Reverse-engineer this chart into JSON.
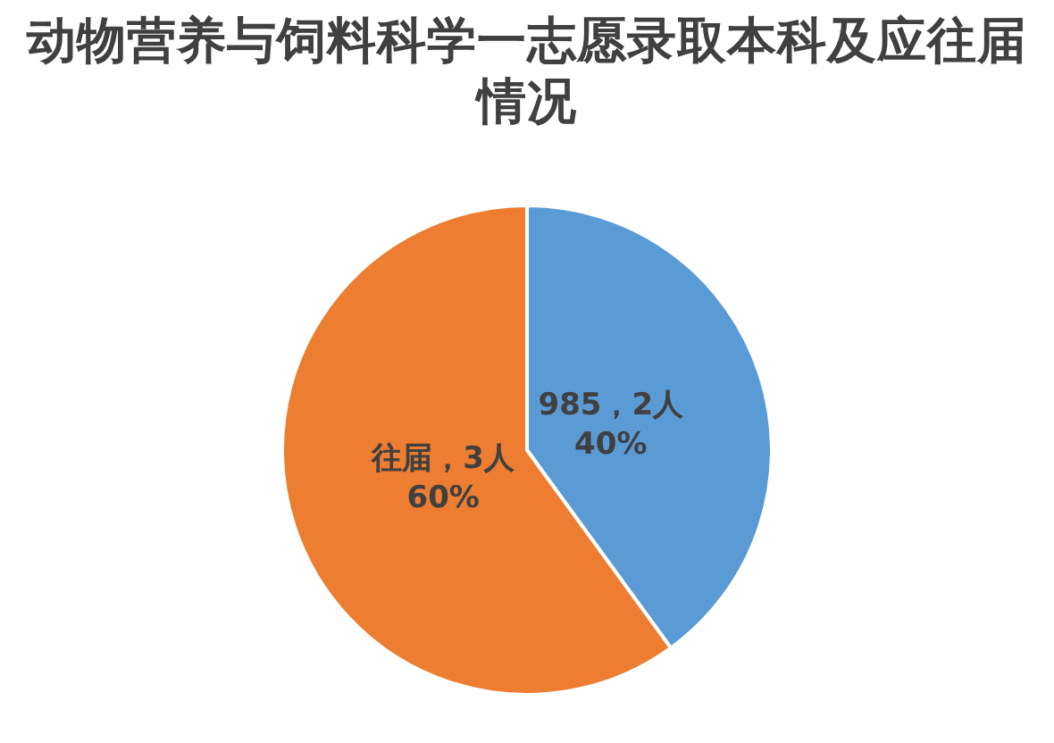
{
  "chart_data": {
    "type": "pie",
    "title": "动物营养与饲料科学一志愿录取本科及应往届情况",
    "categories": [
      null,
      null
    ],
    "values": [
      2,
      3
    ],
    "colors": [
      "#5b9bd5",
      "#ed7d31"
    ],
    "value_labels": [
      "985，2人 40%",
      "往届，3人 60%"
    ]
  }
}
